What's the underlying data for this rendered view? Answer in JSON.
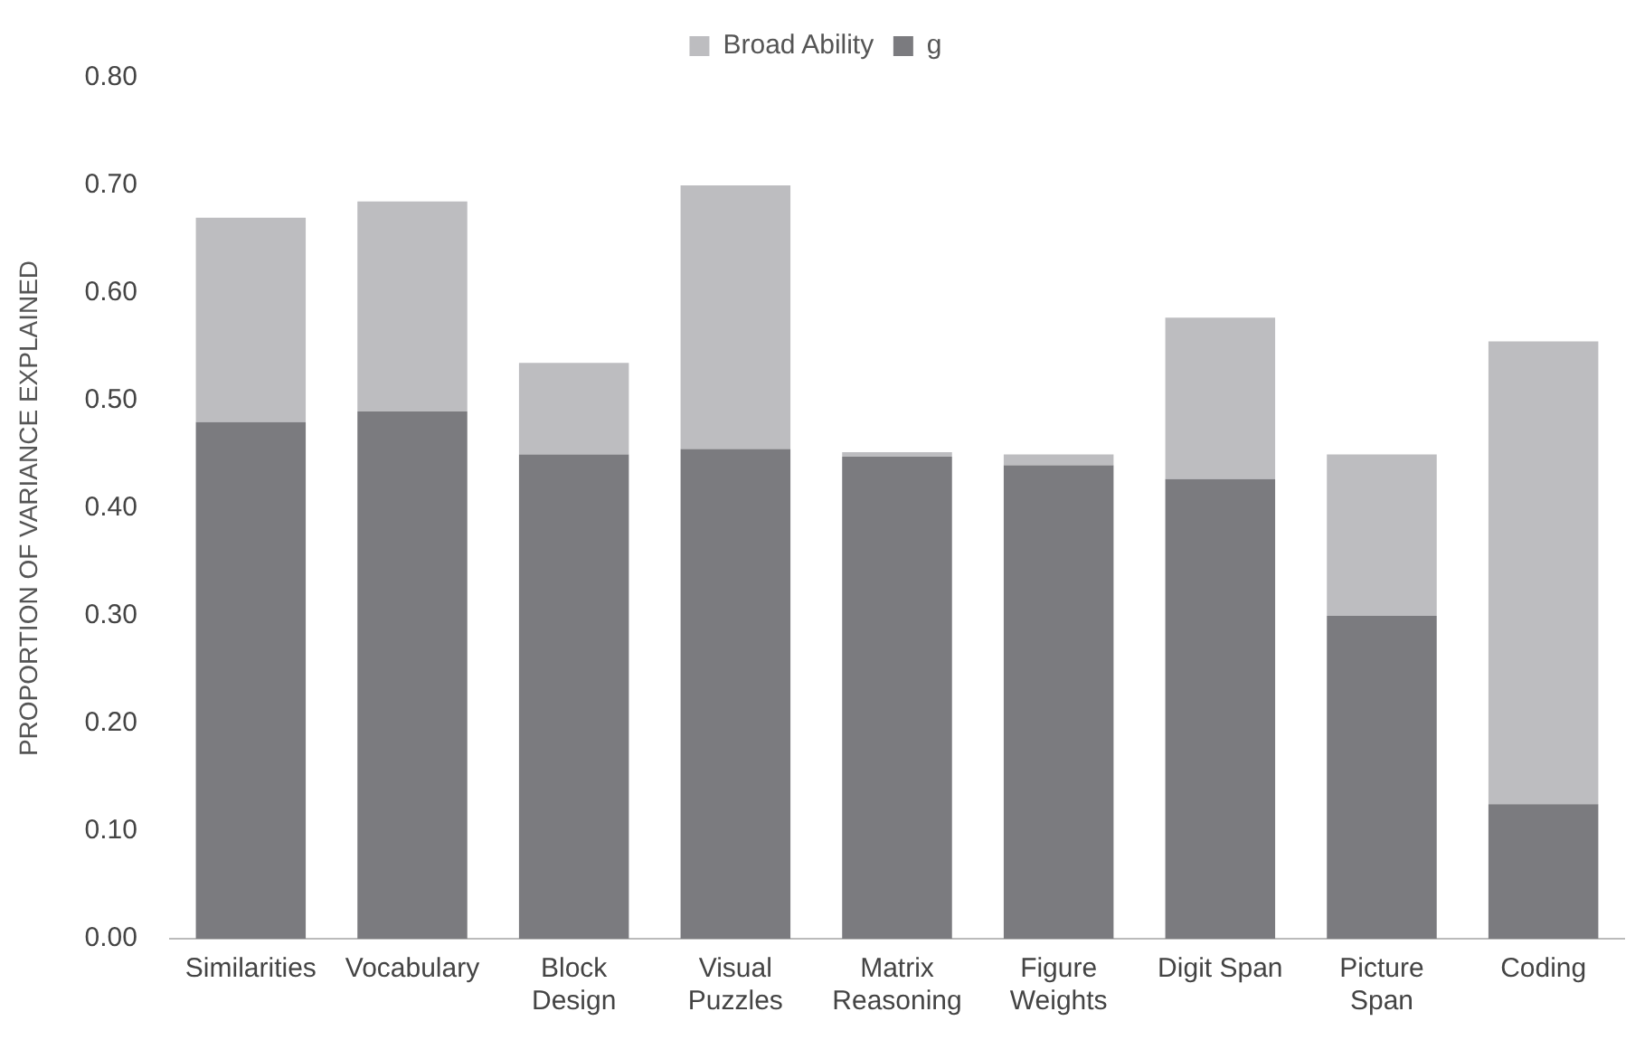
{
  "chart_data": {
    "type": "bar",
    "stacked": true,
    "ylabel": "PROPORTION OF VARIANCE EXPLAINED",
    "categories": [
      "Similarities",
      "Vocabulary",
      "Block Design",
      "Visual Puzzles",
      "Matrix Reasoning",
      "Figure Weights",
      "Digit Span",
      "Picture Span",
      "Coding"
    ],
    "series": [
      {
        "name": "g",
        "color": "#7b7b7f",
        "values": [
          0.48,
          0.49,
          0.45,
          0.455,
          0.448,
          0.44,
          0.427,
          0.3,
          0.125
        ]
      },
      {
        "name": "Broad Ability",
        "color": "#bdbdc0",
        "values": [
          0.19,
          0.195,
          0.085,
          0.245,
          0.004,
          0.01,
          0.15,
          0.15,
          0.43
        ]
      }
    ],
    "ylim": [
      0,
      0.8
    ],
    "yticks": [
      {
        "value": 0,
        "label": "0.00"
      },
      {
        "value": 0.1,
        "label": "0.10"
      },
      {
        "value": 0.2,
        "label": "0.20"
      },
      {
        "value": 0.3,
        "label": "0.30"
      },
      {
        "value": 0.4,
        "label": "0.40"
      },
      {
        "value": 0.5,
        "label": "0.50"
      },
      {
        "value": 0.6,
        "label": "0.60"
      },
      {
        "value": 0.7,
        "label": "0.70"
      },
      {
        "value": 0.8,
        "label": "0.80"
      }
    ],
    "grid": false,
    "legend": "top"
  }
}
